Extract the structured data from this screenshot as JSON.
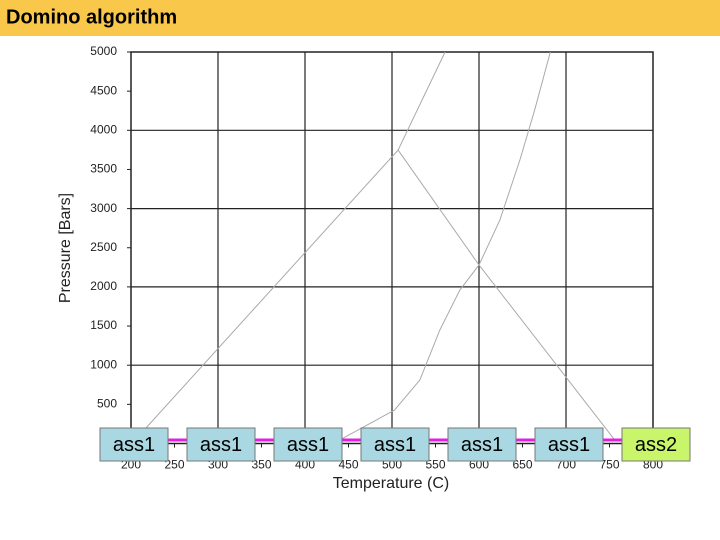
{
  "header": {
    "title": "Domino algorithm",
    "color": "#f9c84a"
  },
  "chart_data": {
    "type": "line",
    "xlabel": "Temperature (C)",
    "ylabel": "Pressure [Bars]",
    "xlim": [
      200,
      800
    ],
    "ylim": [
      0,
      5000
    ],
    "xticks": [
      200,
      250,
      300,
      350,
      400,
      450,
      500,
      550,
      600,
      650,
      700,
      750,
      800
    ],
    "yticks": [
      500,
      1000,
      1500,
      2000,
      2500,
      3000,
      3500,
      4000,
      4500,
      5000
    ],
    "x_gridlines": [
      300,
      400,
      500,
      600,
      700
    ],
    "y_gridlines": [
      1000,
      2000,
      3000,
      4000
    ],
    "series": [
      {
        "color": "#aaaaaa",
        "x": [
          210,
          507,
          561
        ],
        "values": [
          110,
          3748,
          5000
        ]
      },
      {
        "color": "#aaaaaa",
        "x": [
          507,
          600,
          756
        ],
        "values": [
          3748,
          2280,
          45
        ]
      },
      {
        "color": "#aaaaaa",
        "x": [
          440,
          503,
          532,
          555,
          578,
          600,
          624,
          647,
          664,
          682
        ],
        "values": [
          45,
          428,
          811,
          1450,
          1960,
          2280,
          2854,
          3621,
          4260,
          5000
        ]
      }
    ]
  },
  "boxes": [
    {
      "label": "ass1",
      "color": "#a9d8e2"
    },
    {
      "label": "ass1",
      "color": "#a9d8e2"
    },
    {
      "label": "ass1",
      "color": "#a9d8e2"
    },
    {
      "label": "ass1",
      "color": "#a9d8e2"
    },
    {
      "label": "ass1",
      "color": "#a9d8e2"
    },
    {
      "label": "ass1",
      "color": "#a9d8e2"
    },
    {
      "label": "ass2",
      "color": "#c9f56a"
    }
  ],
  "connector_color": "#e020e0"
}
